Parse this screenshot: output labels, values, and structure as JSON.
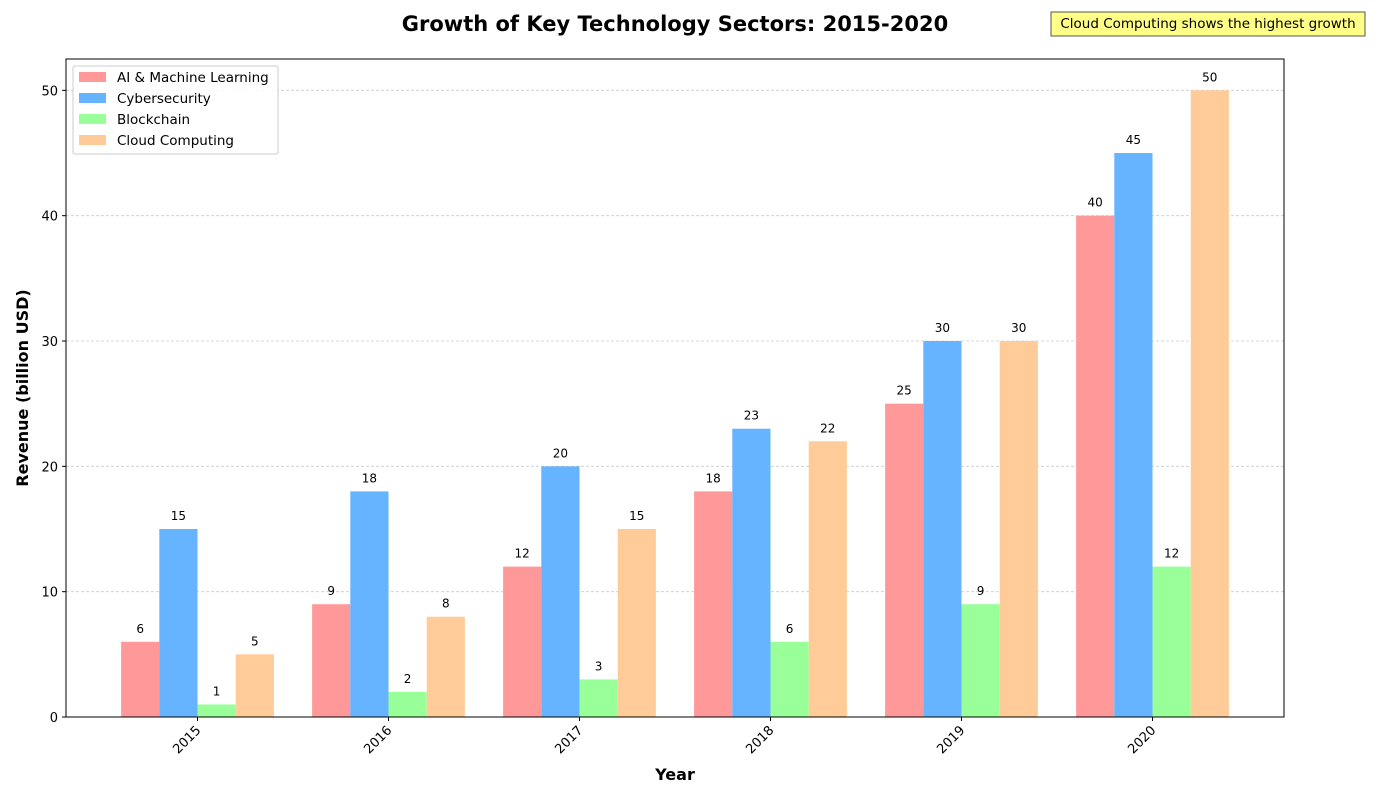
{
  "chart_data": {
    "type": "bar",
    "title": "Growth of Key Technology Sectors: 2015-2020",
    "xlabel": "Year",
    "ylabel": "Revenue (billion USD)",
    "categories": [
      "2015",
      "2016",
      "2017",
      "2018",
      "2019",
      "2020"
    ],
    "series": [
      {
        "name": "AI & Machine Learning",
        "color": "#ff9999",
        "values": [
          6,
          9,
          12,
          18,
          25,
          40
        ]
      },
      {
        "name": "Cybersecurity",
        "color": "#66b3ff",
        "values": [
          15,
          18,
          20,
          23,
          30,
          45
        ]
      },
      {
        "name": "Blockchain",
        "color": "#99ff99",
        "values": [
          1,
          2,
          3,
          6,
          9,
          12
        ]
      },
      {
        "name": "Cloud Computing",
        "color": "#ffcc99",
        "values": [
          5,
          8,
          15,
          22,
          30,
          50
        ]
      }
    ],
    "ylim": [
      0,
      52.5
    ],
    "yticks": [
      0,
      10,
      20,
      30,
      40,
      50
    ],
    "grid": "y-dashed",
    "legend_position": "top-left",
    "annotation": {
      "text": "Cloud Computing shows the highest growth",
      "background": "#ffff88",
      "position": "top-right"
    }
  }
}
